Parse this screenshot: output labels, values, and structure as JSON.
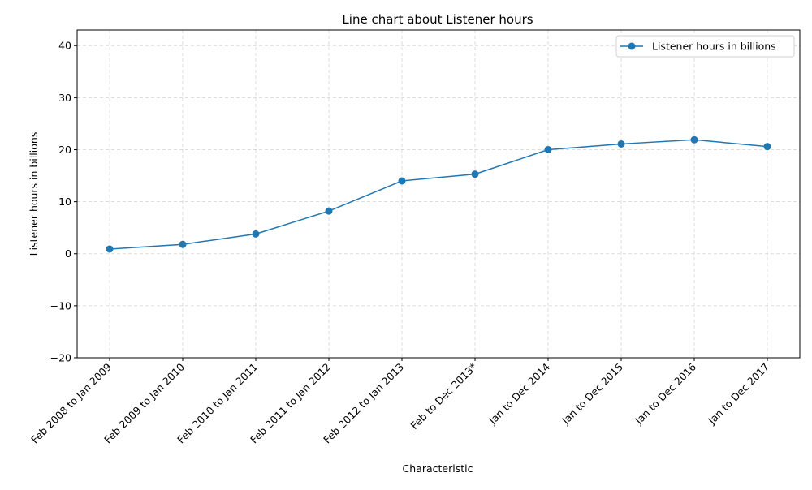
{
  "chart_data": {
    "type": "line",
    "title": "Line chart about Listener hours",
    "xlabel": "Characteristic",
    "ylabel": "Listener hours in billions",
    "categories": [
      "Feb 2008 to Jan 2009",
      "Feb 2009 to Jan 2010",
      "Feb 2010 to Jan 2011",
      "Feb 2011 to Jan 2012",
      "Feb 2012 to Jan 2013",
      "Feb to Dec 2013*",
      "Jan to Dec 2014",
      "Jan to Dec 2015",
      "Jan to Dec 2016",
      "Jan to Dec 2017"
    ],
    "series": [
      {
        "name": "Listener hours in billions",
        "values": [
          0.9,
          1.8,
          3.8,
          8.2,
          14.0,
          15.3,
          20.0,
          21.1,
          21.9,
          20.6
        ],
        "color": "#1f77b4"
      }
    ],
    "ylim": [
      -20,
      43
    ],
    "yticks": [
      -20,
      -10,
      0,
      10,
      20,
      30,
      40
    ],
    "grid": true,
    "legend_position": "top-right"
  }
}
